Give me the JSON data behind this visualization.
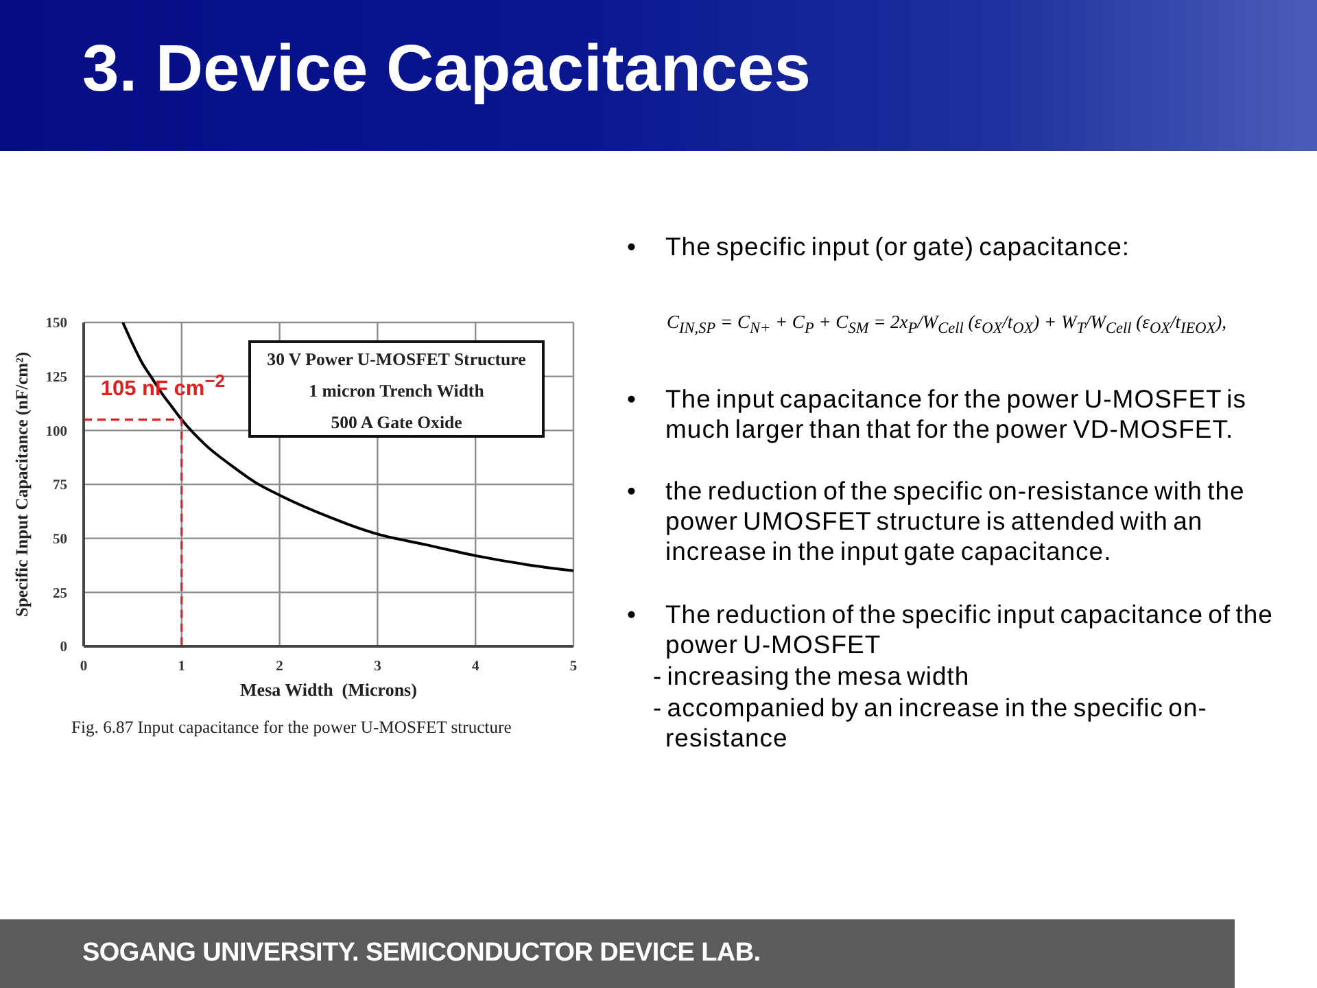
{
  "chart_data": {
    "type": "line",
    "title": "3. Device Capacitances",
    "xlabel": "Mesa Width  (Microns)",
    "ylabel": "Specific Input Capacitance  (nF/cm²)",
    "xlim": [
      0,
      5
    ],
    "ylim": [
      0,
      150
    ],
    "xticks": [
      0,
      1,
      2,
      3,
      4,
      5
    ],
    "yticks": [
      0,
      25,
      50,
      75,
      100,
      125,
      150
    ],
    "grid": true,
    "legend": false,
    "marker": "none",
    "line_style": "solid",
    "series": [
      {
        "color": "#000000",
        "x": [
          0.4,
          0.5,
          0.6,
          0.7,
          0.8,
          0.9,
          1,
          1.25,
          1.5,
          1.75,
          2,
          2.5,
          3,
          3.5,
          4,
          4.5,
          5
        ],
        "values": [
          150,
          140,
          131,
          124,
          117,
          111,
          105,
          93,
          84,
          76,
          70,
          60,
          52,
          47,
          42,
          38,
          35
        ]
      },
      {
        "color": "#e02020",
        "line_style": "dashed",
        "x": [
          0,
          1,
          1
        ],
        "values": [
          105,
          105,
          0
        ]
      }
    ],
    "annotations": [
      "30 V Power U-MOSFET Structure",
      "1 micron Trench Width",
      "500 A Gate Oxide",
      {
        "text": "105 nF cm$^{−2}$",
        "x": 1,
        "y": 105
      },
      "Fig. 6.87 Input capacitance for the power U-MOSFET structure",
      "• The specific input (or gate) capacitance:",
      "C$_{IN,SP}$ = C$_{N+}$ + C$_{P}$ + C$_{SM}$ = 2x$_{P}$/W$_{Cell}$ (ε$_{OX}$/t$_{OX}$) + W$_{T}$/W$_{Cell}$ (ε$_{OX}$/t$_{IEOX}$),",
      "• The input capacitance for the power U-MOSFET is much larger than that for the power VD-MOSFET.",
      "• the reduction of the specific on-resistance with the power UMOSFET structure is attended with an increase in the input gate capacitance.",
      "• The reduction of the specific input capacitance of the power U-MOSFET",
      "- increasing the mesa width",
      "- accompanied by an increase in the specific on-resistance",
      "SOGANG UNIVERSITY. SEMICONDUCTOR DEVICE LAB."
    ]
  }
}
